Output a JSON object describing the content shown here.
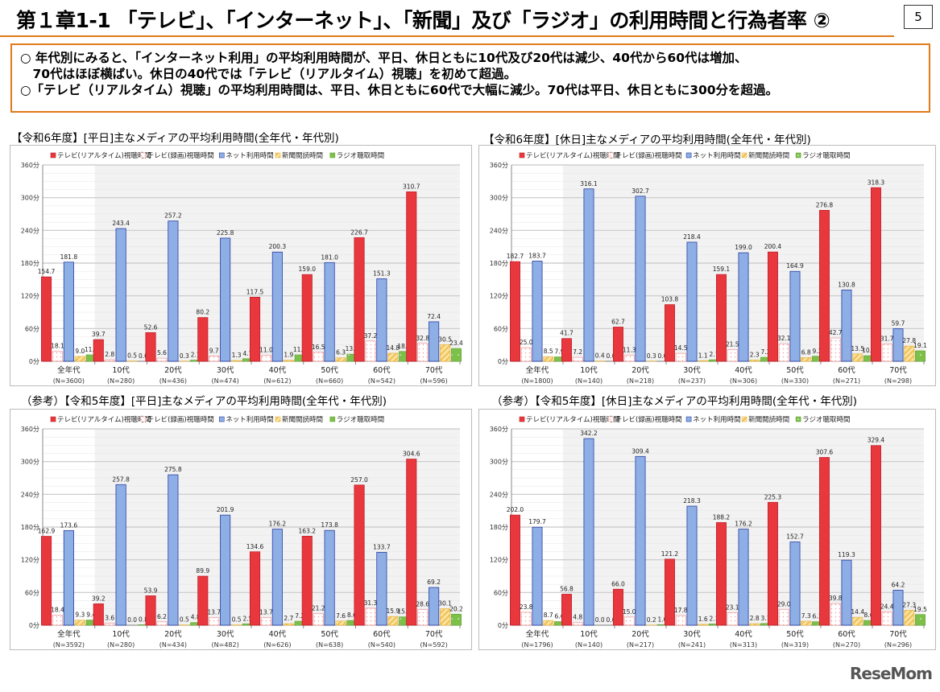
{
  "header": {
    "title": "第１章1-1 「テレビ」、「インターネット」、「新聞」及び「ラジオ」の利用時間と行為者率 ②",
    "page_number": "5"
  },
  "summary": [
    "○ 年代別にみると、「インターネット利用」の平均利用時間が、平日、休日ともに10代及び20代は減少、40代から60代は増加、",
    "　70代はほぼ横ばい。休日の40代では「テレビ（リアルタイム）視聴」を初めて超過。",
    "○「テレビ（リアルタイム）視聴」の平均利用時間は、平日、休日ともに60代で大幅に減少。70代は平日、休日ともに300分を超過。"
  ],
  "logo": "ReseMom",
  "colors": {
    "tv_realtime": "#e8383d",
    "tv_recorded": "#f4a0a0",
    "internet": "#8eaee6",
    "newspaper": "#f2c35a",
    "radio": "#7cc04a",
    "accent": "#e07a1a"
  },
  "chart_data": [
    {
      "type": "bar",
      "title": "【令和6年度】[平日]主なメディアの平均利用時間(全年代・年代別)",
      "ylim": [
        0,
        360
      ],
      "yticks": [
        "0分",
        "60分",
        "120分",
        "180分",
        "240分",
        "300分",
        "360分"
      ],
      "legend_position": "top",
      "grid": true,
      "categories": [
        "全年代",
        "10代",
        "20代",
        "30代",
        "40代",
        "50代",
        "60代",
        "70代"
      ],
      "n_labels": [
        "(N=3600)",
        "(N=280)",
        "(N=436)",
        "(N=474)",
        "(N=612)",
        "(N=660)",
        "(N=542)",
        "(N=596)"
      ],
      "series": [
        {
          "name": "テレビ(リアルタイム)視聴時間",
          "values": [
            154.7,
            39.7,
            52.6,
            80.2,
            117.5,
            159.0,
            226.7,
            310.7
          ]
        },
        {
          "name": "テレビ(録画)視聴時間",
          "values": [
            18.1,
            2.8,
            5.6,
            9.7,
            11.0,
            16.5,
            37.2,
            32.8
          ]
        },
        {
          "name": "ネット利用時間",
          "values": [
            181.8,
            243.4,
            257.2,
            225.8,
            200.3,
            181.0,
            151.3,
            72.4
          ]
        },
        {
          "name": "新聞閲読時間",
          "values": [
            9.0,
            0.5,
            0.3,
            1.3,
            1.9,
            6.3,
            14.8,
            30.5
          ]
        },
        {
          "name": "ラジオ聴取時間",
          "values": [
            11.8,
            0.0,
            2.1,
            4.7,
            11.7,
            13.0,
            18.0,
            23.4
          ]
        }
      ]
    },
    {
      "type": "bar",
      "title": "【令和6年度】[休日]主なメディアの平均利用時間(全年代・年代別)",
      "ylim": [
        0,
        360
      ],
      "yticks": [
        "0分",
        "60分",
        "120分",
        "180分",
        "240分",
        "300分",
        "360分"
      ],
      "legend_position": "top",
      "grid": true,
      "categories": [
        "全年代",
        "10代",
        "20代",
        "30代",
        "40代",
        "50代",
        "60代",
        "70代"
      ],
      "n_labels": [
        "(N=1800)",
        "(N=140)",
        "(N=218)",
        "(N=237)",
        "(N=306)",
        "(N=330)",
        "(N=271)",
        "(N=298)"
      ],
      "series": [
        {
          "name": "テレビ(リアルタイム)視聴時間",
          "values": [
            182.7,
            41.7,
            62.7,
            103.8,
            159.1,
            200.4,
            276.8,
            318.3
          ]
        },
        {
          "name": "テレビ(録画)視聴時間",
          "values": [
            25.0,
            7.2,
            11.3,
            14.5,
            21.5,
            32.1,
            42.7,
            31.7
          ]
        },
        {
          "name": "ネット利用時間",
          "values": [
            183.7,
            316.1,
            302.7,
            218.4,
            199.0,
            164.9,
            130.8,
            59.7
          ]
        },
        {
          "name": "新聞閲読時間",
          "values": [
            8.5,
            0.4,
            0.3,
            1.1,
            2.3,
            6.8,
            13.5,
            27.8
          ]
        },
        {
          "name": "ラジオ聴取時間",
          "values": [
            7.9,
            0.0,
            0.0,
            2.7,
            7.2,
            9.2,
            10.1,
            19.1
          ]
        }
      ]
    },
    {
      "type": "bar",
      "title": "（参考）【令和5年度】[平日]主なメディアの平均利用時間(全年代・年代別)",
      "ylim": [
        0,
        360
      ],
      "yticks": [
        "0分",
        "60分",
        "120分",
        "180分",
        "240分",
        "300分",
        "360分"
      ],
      "legend_position": "top",
      "grid": true,
      "categories": [
        "全年代",
        "10代",
        "20代",
        "30代",
        "40代",
        "50代",
        "60代",
        "70代"
      ],
      "n_labels": [
        "(N=3592)",
        "(N=280)",
        "(N=434)",
        "(N=482)",
        "(N=626)",
        "(N=638)",
        "(N=540)",
        "(N=592)"
      ],
      "series": [
        {
          "name": "テレビ(リアルタイム)視聴時間",
          "values": [
            162.9,
            39.2,
            53.9,
            89.9,
            134.6,
            163.2,
            257.0,
            304.6
          ]
        },
        {
          "name": "テレビ(録画)視聴時間",
          "values": [
            18.4,
            3.6,
            6.2,
            13.7,
            13.7,
            21.2,
            31.3,
            28.6
          ]
        },
        {
          "name": "ネット利用時間",
          "values": [
            173.6,
            257.8,
            275.8,
            201.9,
            176.2,
            173.8,
            133.7,
            69.2
          ]
        },
        {
          "name": "新聞閲読時間",
          "values": [
            9.3,
            0.0,
            0.5,
            0.5,
            2.7,
            7.6,
            15.9,
            30.1
          ]
        },
        {
          "name": "ラジオ聴取時間",
          "values": [
            9.4,
            0.8,
            4.8,
            2.5,
            7.2,
            8.6,
            15.2,
            20.2
          ]
        }
      ]
    },
    {
      "type": "bar",
      "title": "（参考）【令和5年度】[休日]主なメディアの平均利用時間(全年代・年代別)",
      "ylim": [
        0,
        360
      ],
      "yticks": [
        "0分",
        "60分",
        "120分",
        "180分",
        "240分",
        "300分",
        "360分"
      ],
      "legend_position": "top",
      "grid": true,
      "categories": [
        "全年代",
        "10代",
        "20代",
        "30代",
        "40代",
        "50代",
        "60代",
        "70代"
      ],
      "n_labels": [
        "(N=1796)",
        "(N=140)",
        "(N=217)",
        "(N=241)",
        "(N=313)",
        "(N=319)",
        "(N=270)",
        "(N=296)"
      ],
      "series": [
        {
          "name": "テレビ(リアルタイム)視聴時間",
          "values": [
            202.0,
            56.8,
            66.0,
            121.2,
            188.2,
            225.3,
            307.6,
            329.4
          ]
        },
        {
          "name": "テレビ(録画)視聴時間",
          "values": [
            23.8,
            4.8,
            15.0,
            17.8,
            23.1,
            29.0,
            39.8,
            24.4
          ]
        },
        {
          "name": "ネット利用時間",
          "values": [
            179.7,
            342.2,
            309.4,
            218.3,
            176.2,
            152.7,
            119.3,
            64.2
          ]
        },
        {
          "name": "新聞閲読時間",
          "values": [
            8.7,
            0.0,
            0.2,
            1.6,
            2.8,
            7.3,
            14.4,
            27.3
          ]
        },
        {
          "name": "ラジオ聴取時間",
          "values": [
            6.6,
            0.0,
            1.0,
            2.3,
            3.1,
            6.3,
            8.6,
            19.5
          ]
        }
      ]
    }
  ]
}
